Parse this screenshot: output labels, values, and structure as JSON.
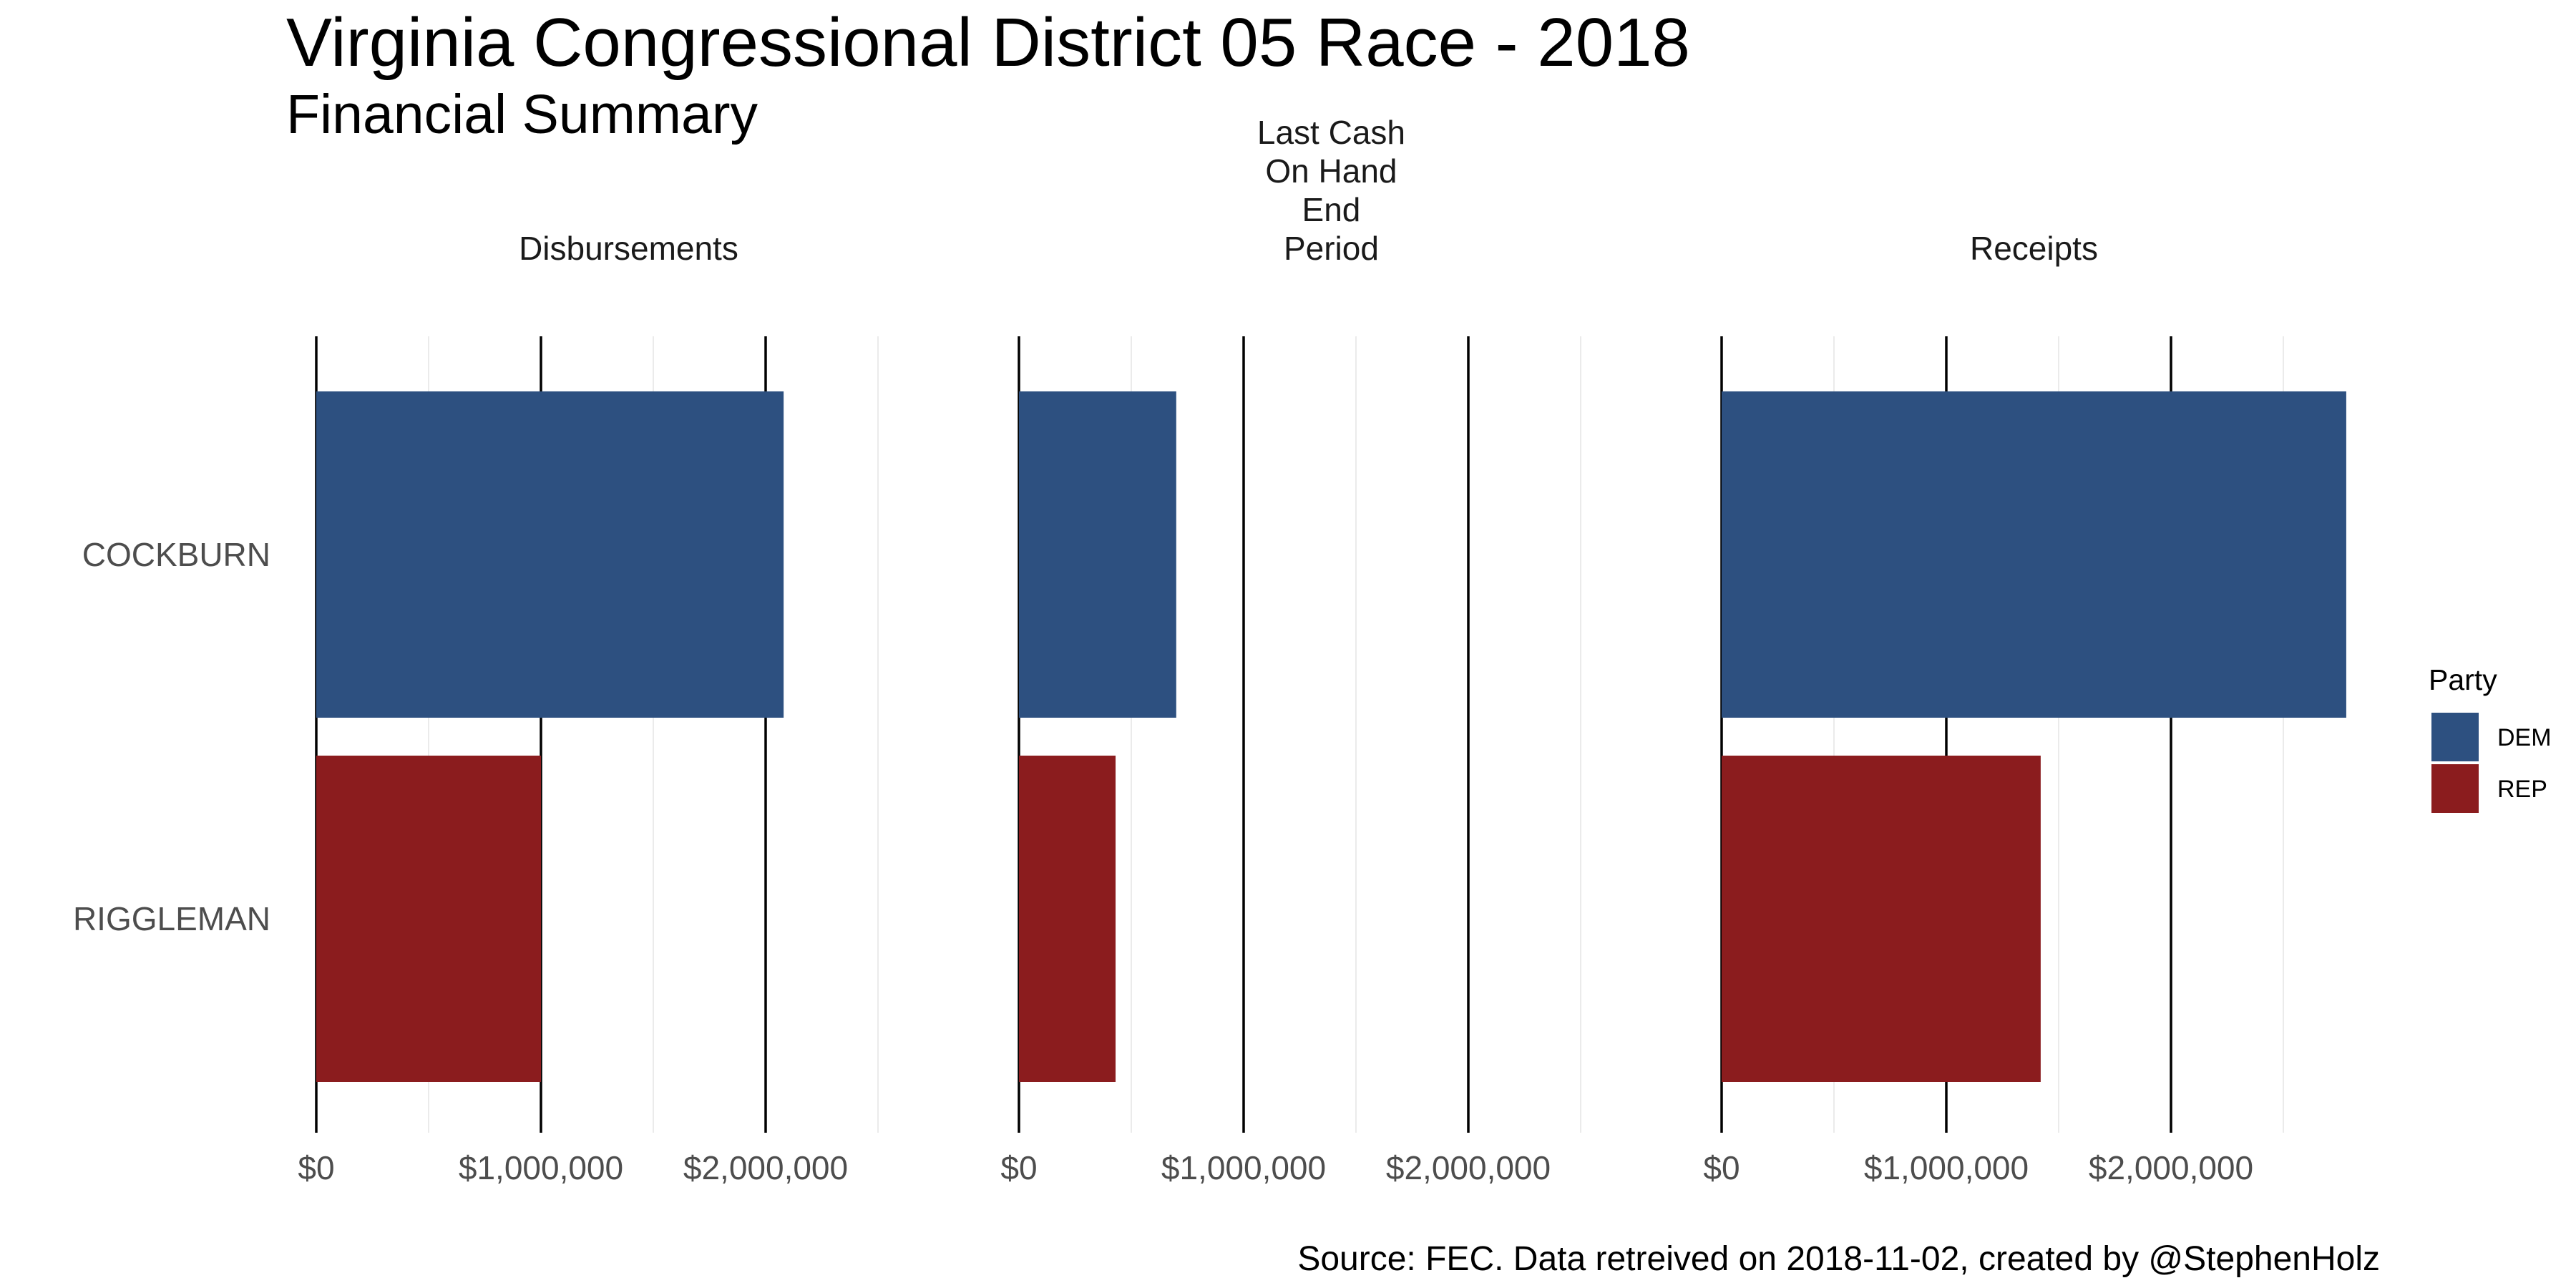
{
  "chart_data": {
    "type": "bar",
    "orientation": "horizontal",
    "faceted": true,
    "title": "Virginia Congressional District 05 Race - 2018",
    "subtitle": "Financial Summary",
    "caption": "Source: FEC. Data retreived on 2018-11-02, created by @StephenHolz",
    "categories": [
      "COCKBURN",
      "RIGGLEMAN"
    ],
    "fill_by": "Party",
    "xlim": [
      0,
      2780000
    ],
    "x_ticks": [
      0,
      1000000,
      2000000
    ],
    "x_tick_labels": [
      "$0",
      "$1,000,000",
      "$2,000,000"
    ],
    "grid": true,
    "legend": {
      "title": "Party",
      "position": "right",
      "entries": [
        {
          "label": "DEM",
          "color": "#2D5080"
        },
        {
          "label": "REP",
          "color": "#8B1C1E"
        }
      ]
    },
    "panels": [
      {
        "label_lines": [
          "Disbursements"
        ],
        "bars": [
          {
            "category": "COCKBURN",
            "party": "DEM",
            "value": 2080000
          },
          {
            "category": "RIGGLEMAN",
            "party": "REP",
            "value": 1000000
          }
        ]
      },
      {
        "label_lines": [
          "Last Cash",
          "On Hand",
          "End",
          "Period"
        ],
        "bars": [
          {
            "category": "COCKBURN",
            "party": "DEM",
            "value": 700000
          },
          {
            "category": "RIGGLEMAN",
            "party": "REP",
            "value": 430000
          }
        ]
      },
      {
        "label_lines": [
          "Receipts"
        ],
        "bars": [
          {
            "category": "COCKBURN",
            "party": "DEM",
            "value": 2780000
          },
          {
            "category": "RIGGLEMAN",
            "party": "REP",
            "value": 1420000
          }
        ]
      }
    ]
  }
}
